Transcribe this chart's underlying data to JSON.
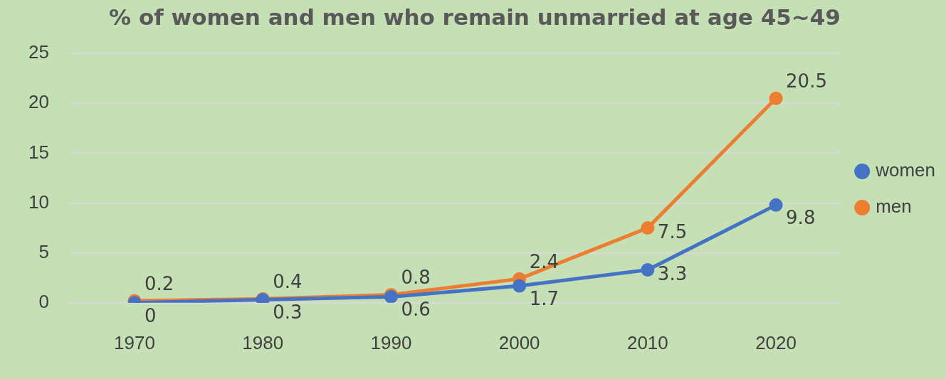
{
  "chart_data": {
    "type": "line",
    "title": "% of women and men who remain unmarried at age 45~49",
    "categories": [
      "1970",
      "1980",
      "1990",
      "2000",
      "2010",
      "2020"
    ],
    "series": [
      {
        "name": "women",
        "color": "#4472c4",
        "values": [
          0,
          0.3,
          0.6,
          1.7,
          3.3,
          9.8
        ]
      },
      {
        "name": "men",
        "color": "#ed7d31",
        "values": [
          0.2,
          0.4,
          0.8,
          2.4,
          7.5,
          20.5
        ]
      }
    ],
    "ylim": [
      0,
      25
    ],
    "yticks": [
      0,
      5,
      10,
      15,
      20,
      25
    ],
    "grid": "y",
    "legend": "right",
    "marker": "circle",
    "data_labels": true
  }
}
